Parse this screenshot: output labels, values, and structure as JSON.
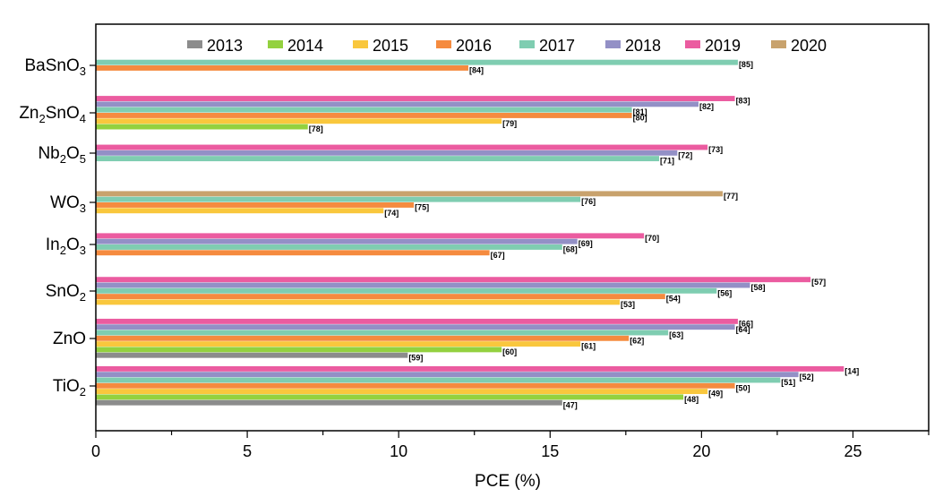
{
  "chart_data": {
    "type": "bar",
    "orientation": "horizontal",
    "xlabel": "PCE (%)",
    "xlim": [
      0,
      27.5
    ],
    "xticks": [
      0,
      5,
      10,
      15,
      20,
      25
    ],
    "legend_position": "top",
    "grid": false,
    "categories": [
      {
        "label": "BaSnO3",
        "parts": [
          [
            "BaSnO",
            ""
          ],
          [
            "3",
            "sub"
          ]
        ]
      },
      {
        "label": "Zn2SnO4",
        "parts": [
          [
            "Zn",
            ""
          ],
          [
            "2",
            "sub"
          ],
          [
            "SnO",
            ""
          ],
          [
            "4",
            "sub"
          ]
        ]
      },
      {
        "label": "Nb2O5",
        "parts": [
          [
            "Nb",
            ""
          ],
          [
            "2",
            "sub"
          ],
          [
            "O",
            ""
          ],
          [
            "5",
            "sub"
          ]
        ]
      },
      {
        "label": "WO3",
        "parts": [
          [
            "WO",
            ""
          ],
          [
            "3",
            "sub"
          ]
        ]
      },
      {
        "label": "In2O3",
        "parts": [
          [
            "In",
            ""
          ],
          [
            "2",
            "sub"
          ],
          [
            "O",
            ""
          ],
          [
            "3",
            "sub"
          ]
        ]
      },
      {
        "label": "SnO2",
        "parts": [
          [
            "SnO",
            ""
          ],
          [
            "2",
            "sub"
          ]
        ]
      },
      {
        "label": "ZnO",
        "parts": [
          [
            "ZnO",
            ""
          ]
        ]
      },
      {
        "label": "TiO2",
        "parts": [
          [
            "TiO",
            ""
          ],
          [
            "2",
            "sub"
          ]
        ]
      }
    ],
    "series": [
      {
        "name": "2013",
        "color": "#8c8c8c"
      },
      {
        "name": "2014",
        "color": "#93d13f"
      },
      {
        "name": "2015",
        "color": "#f9c73d"
      },
      {
        "name": "2016",
        "color": "#f58b3f"
      },
      {
        "name": "2017",
        "color": "#7fcdb1"
      },
      {
        "name": "2018",
        "color": "#9390c6"
      },
      {
        "name": "2019",
        "color": "#eb5ca0"
      },
      {
        "name": "2020",
        "color": "#c8a26d"
      }
    ],
    "bars": [
      {
        "category": "BaSnO3",
        "series": "2017",
        "value": 21.2,
        "ref": "[85]"
      },
      {
        "category": "BaSnO3",
        "series": "2016",
        "value": 12.3,
        "ref": "[84]"
      },
      {
        "category": "Zn2SnO4",
        "series": "2019",
        "value": 21.1,
        "ref": "[83]"
      },
      {
        "category": "Zn2SnO4",
        "series": "2018",
        "value": 19.9,
        "ref": "[82]"
      },
      {
        "category": "Zn2SnO4",
        "series": "2017",
        "value": 17.7,
        "ref": "[81]"
      },
      {
        "category": "Zn2SnO4",
        "series": "2016",
        "value": 17.7,
        "ref": "[80]"
      },
      {
        "category": "Zn2SnO4",
        "series": "2015",
        "value": 13.4,
        "ref": "[79]"
      },
      {
        "category": "Zn2SnO4",
        "series": "2014",
        "value": 7.0,
        "ref": "[78]"
      },
      {
        "category": "Nb2O5",
        "series": "2019",
        "value": 20.2,
        "ref": "[73]"
      },
      {
        "category": "Nb2O5",
        "series": "2018",
        "value": 19.2,
        "ref": "[72]"
      },
      {
        "category": "Nb2O5",
        "series": "2017",
        "value": 18.6,
        "ref": "[71]"
      },
      {
        "category": "WO3",
        "series": "2020",
        "value": 20.7,
        "ref": "[77]"
      },
      {
        "category": "WO3",
        "series": "2017",
        "value": 16.0,
        "ref": "[76]"
      },
      {
        "category": "WO3",
        "series": "2016",
        "value": 10.5,
        "ref": "[75]"
      },
      {
        "category": "WO3",
        "series": "2015",
        "value": 9.5,
        "ref": "[74]"
      },
      {
        "category": "In2O3",
        "series": "2019",
        "value": 18.1,
        "ref": "[70]"
      },
      {
        "category": "In2O3",
        "series": "2018",
        "value": 15.9,
        "ref": "[69]"
      },
      {
        "category": "In2O3",
        "series": "2017",
        "value": 15.4,
        "ref": "[68]"
      },
      {
        "category": "In2O3",
        "series": "2016",
        "value": 13.0,
        "ref": "[67]"
      },
      {
        "category": "SnO2",
        "series": "2019",
        "value": 23.6,
        "ref": "[57]"
      },
      {
        "category": "SnO2",
        "series": "2018",
        "value": 21.6,
        "ref": "[58]"
      },
      {
        "category": "SnO2",
        "series": "2017",
        "value": 20.5,
        "ref": "[56]"
      },
      {
        "category": "SnO2",
        "series": "2016",
        "value": 18.8,
        "ref": "[54]"
      },
      {
        "category": "SnO2",
        "series": "2015",
        "value": 17.3,
        "ref": "[53]"
      },
      {
        "category": "ZnO",
        "series": "2019",
        "value": 21.2,
        "ref": "[66]"
      },
      {
        "category": "ZnO",
        "series": "2018",
        "value": 21.1,
        "ref": "[64]"
      },
      {
        "category": "ZnO",
        "series": "2017",
        "value": 18.9,
        "ref": "[63]"
      },
      {
        "category": "ZnO",
        "series": "2016",
        "value": 17.6,
        "ref": "[62]"
      },
      {
        "category": "ZnO",
        "series": "2015",
        "value": 16.0,
        "ref": "[61]"
      },
      {
        "category": "ZnO",
        "series": "2014",
        "value": 13.4,
        "ref": "[60]"
      },
      {
        "category": "ZnO",
        "series": "2013",
        "value": 10.3,
        "ref": "[59]"
      },
      {
        "category": "TiO2",
        "series": "2019",
        "value": 24.7,
        "ref": "[14]"
      },
      {
        "category": "TiO2",
        "series": "2018",
        "value": 23.2,
        "ref": "[52]"
      },
      {
        "category": "TiO2",
        "series": "2017",
        "value": 22.6,
        "ref": "[51]"
      },
      {
        "category": "TiO2",
        "series": "2016",
        "value": 21.1,
        "ref": "[50]"
      },
      {
        "category": "TiO2",
        "series": "2015",
        "value": 20.2,
        "ref": "[49]"
      },
      {
        "category": "TiO2",
        "series": "2014",
        "value": 19.4,
        "ref": "[48]"
      },
      {
        "category": "TiO2",
        "series": "2013",
        "value": 15.4,
        "ref": "[47]"
      }
    ]
  }
}
